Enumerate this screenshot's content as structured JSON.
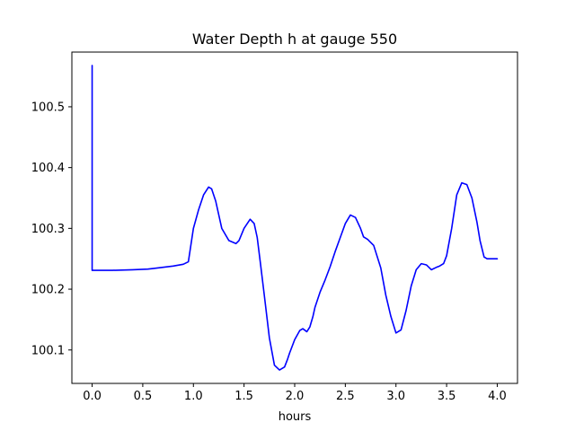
{
  "chart_data": {
    "type": "line",
    "title": "Water Depth h at gauge 550",
    "xlabel": "hours",
    "ylabel": "",
    "xlim": [
      -0.2,
      4.2
    ],
    "ylim": [
      100.045,
      100.59
    ],
    "xticks": [
      0.0,
      0.5,
      1.0,
      1.5,
      2.0,
      2.5,
      3.0,
      3.5,
      4.0
    ],
    "xtick_labels": [
      "0.0",
      "0.5",
      "1.0",
      "1.5",
      "2.0",
      "2.5",
      "3.0",
      "3.5",
      "4.0"
    ],
    "yticks": [
      100.1,
      100.2,
      100.3,
      100.4,
      100.5
    ],
    "ytick_labels": [
      "100.1",
      "100.2",
      "100.3",
      "100.4",
      "100.5"
    ],
    "grid": false,
    "line_color": "#0000ff",
    "series": [
      {
        "x": [
          0.0,
          0.0,
          0.005,
          0.2,
          0.4,
          0.55,
          0.6,
          0.7,
          0.8,
          0.9,
          0.95,
          1.0,
          1.05,
          1.1,
          1.15,
          1.18,
          1.22,
          1.28,
          1.35,
          1.42,
          1.45,
          1.5,
          1.56,
          1.6,
          1.63,
          1.66,
          1.7,
          1.75,
          1.8,
          1.85,
          1.9,
          1.93,
          1.95,
          2.0,
          2.05,
          2.08,
          2.12,
          2.15,
          2.18,
          2.2,
          2.25,
          2.3,
          2.35,
          2.4,
          2.45,
          2.5,
          2.55,
          2.6,
          2.65,
          2.68,
          2.72,
          2.78,
          2.85,
          2.9,
          2.95,
          3.0,
          3.05,
          3.1,
          3.15,
          3.2,
          3.25,
          3.3,
          3.35,
          3.4,
          3.43,
          3.47,
          3.5,
          3.55,
          3.6,
          3.65,
          3.7,
          3.75,
          3.8,
          3.83,
          3.87,
          3.9,
          3.95,
          4.0
        ],
        "y": [
          100.568,
          100.231,
          100.231,
          100.231,
          100.232,
          100.233,
          100.234,
          100.236,
          100.238,
          100.241,
          100.245,
          100.3,
          100.33,
          100.355,
          100.368,
          100.365,
          100.345,
          100.3,
          100.28,
          100.275,
          100.28,
          100.3,
          100.315,
          100.308,
          100.285,
          100.245,
          100.19,
          100.12,
          100.075,
          100.067,
          100.072,
          100.085,
          100.095,
          100.117,
          100.132,
          100.135,
          100.13,
          100.138,
          100.155,
          100.17,
          100.195,
          100.215,
          100.237,
          100.262,
          100.285,
          100.308,
          100.322,
          100.318,
          100.3,
          100.286,
          100.282,
          100.272,
          100.235,
          100.19,
          100.155,
          100.128,
          100.133,
          100.165,
          100.205,
          100.232,
          100.242,
          100.24,
          100.232,
          100.236,
          100.238,
          100.242,
          100.255,
          100.3,
          100.355,
          100.375,
          100.372,
          100.35,
          100.31,
          100.28,
          100.253,
          100.25,
          100.25,
          100.25
        ]
      }
    ]
  }
}
